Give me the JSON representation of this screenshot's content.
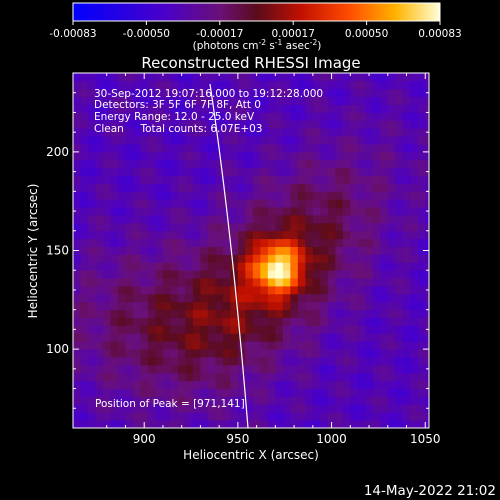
{
  "colorbar": {
    "ticks": [
      "-0.00083",
      "-0.00050",
      "-0.00017",
      "0.00017",
      "0.00050",
      "0.00083"
    ],
    "unit_prefix": "(photons cm",
    "unit_exp1": "-2",
    "unit_mid": " s",
    "unit_exp2": "-1",
    "unit_mid2": " asec",
    "unit_exp3": "-2",
    "unit_suffix": ")"
  },
  "chart_data": {
    "type": "heatmap",
    "title": "Reconstructed RHESSI Image",
    "xlabel": "Heliocentric X (arcsec)",
    "ylabel": "Heliocentric Y (arcsec)",
    "xlim": [
      862,
      1052
    ],
    "ylim": [
      60,
      240
    ],
    "x_ticks": [
      900,
      950,
      1000,
      1050
    ],
    "y_ticks": [
      100,
      150,
      200
    ],
    "x_tick_labels": [
      "900",
      "950",
      "1000",
      "1050"
    ],
    "y_tick_labels": [
      "100",
      "150",
      "200"
    ],
    "peak": [
      971,
      141
    ],
    "color_range": [
      -0.00083,
      0.00083
    ],
    "annotations": [
      "30-Sep-2012 19:07:16.000 to 19:12:28.000",
      "Detectors: 3F 5F 6F 7F 8F, Att 0",
      "Energy Range: 12.0 - 25.0 keV",
      "Clean     Total counts: 6.07E+03"
    ],
    "peak_label": "Position of Peak = [971,141]"
  },
  "footer": {
    "timestamp": "14-May-2022 21:02"
  }
}
